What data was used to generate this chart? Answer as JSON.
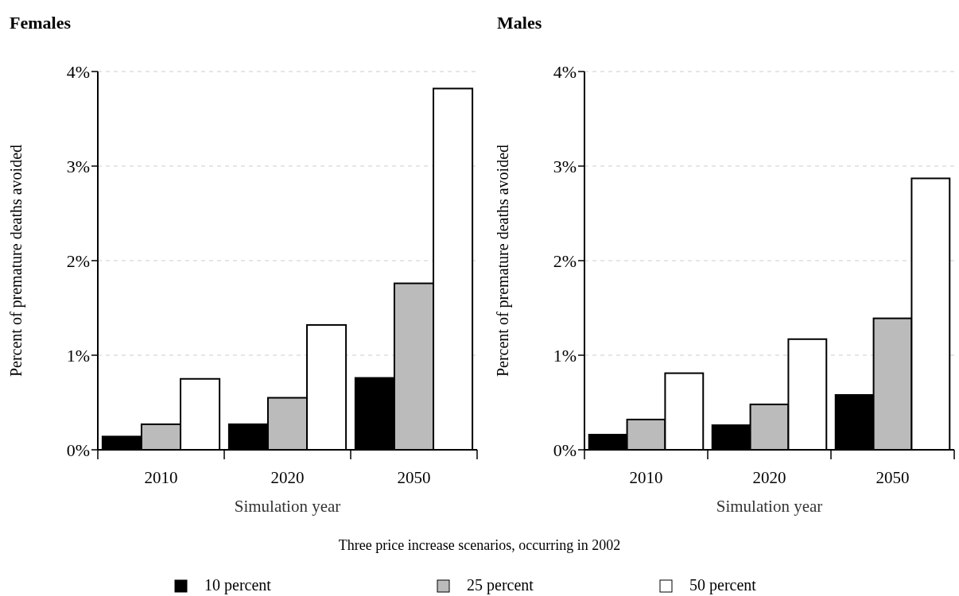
{
  "chart_data": [
    {
      "type": "bar",
      "title": "Females",
      "xlabel": "Simulation year",
      "ylabel": "Percent of premature deaths avoided",
      "categories": [
        "2010",
        "2020",
        "2050"
      ],
      "series": [
        {
          "name": "10 percent",
          "color": "#000000",
          "values": [
            0.14,
            0.27,
            0.76
          ]
        },
        {
          "name": "25 percent",
          "color": "#bbbbbb",
          "values": [
            0.27,
            0.55,
            1.76
          ]
        },
        {
          "name": "50 percent",
          "color": "#ffffff",
          "values": [
            0.75,
            1.32,
            3.82
          ]
        }
      ],
      "ylim": [
        0,
        4
      ],
      "yticks": [
        {
          "value": 0,
          "label": "0%"
        },
        {
          "value": 1,
          "label": "1%"
        },
        {
          "value": 2,
          "label": "2%"
        },
        {
          "value": 3,
          "label": "3%"
        },
        {
          "value": 4,
          "label": "4%"
        }
      ],
      "grid": "y",
      "legend": "bottom",
      "legend_title": "Three price increase scenarios, occurring in 2002"
    },
    {
      "type": "bar",
      "title": "Males",
      "xlabel": "Simulation year",
      "ylabel": "Percent of premature deaths avoided",
      "categories": [
        "2010",
        "2020",
        "2050"
      ],
      "series": [
        {
          "color": "#000000",
          "values": [
            0.16,
            0.26,
            0.58
          ]
        },
        {
          "color": "#bbbbbb",
          "values": [
            0.32,
            0.48,
            1.39
          ]
        },
        {
          "color": "#ffffff",
          "values": [
            0.81,
            1.17,
            2.87
          ]
        }
      ],
      "ylim": [
        0,
        4
      ],
      "yticks": [
        {
          "value": 0,
          "label": "0%"
        },
        {
          "value": 1,
          "label": "1%"
        },
        {
          "value": 2,
          "label": "2%"
        },
        {
          "value": 3,
          "label": "3%"
        },
        {
          "value": 4,
          "label": "4%"
        }
      ],
      "grid": "y"
    }
  ]
}
